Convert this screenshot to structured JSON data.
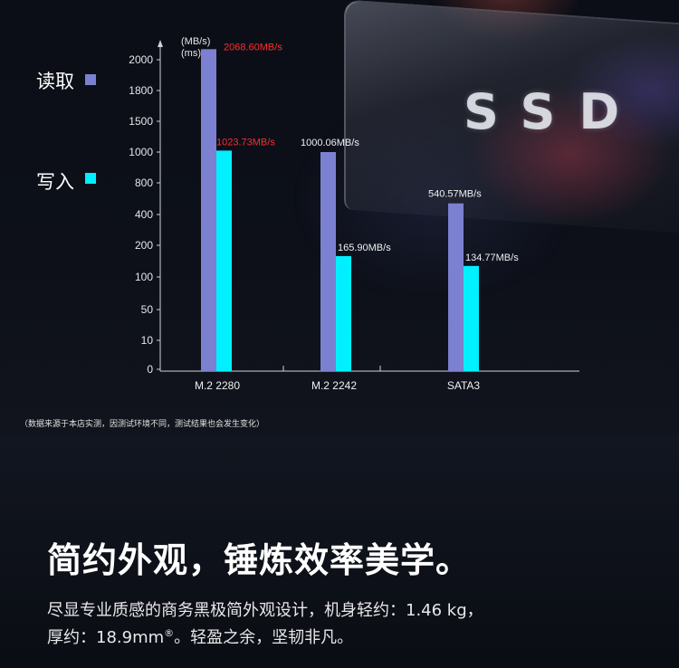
{
  "legend": {
    "read_label": "读取",
    "write_label": "写入",
    "read_color": "#7b80d0",
    "write_color": "#00f0ff"
  },
  "brand": {
    "logo_text": "SSD"
  },
  "chart_data": {
    "type": "bar",
    "y_unit_label_1": "(MB/s)",
    "y_unit_label_2": "(ms)",
    "ytick_labels": [
      "0",
      "10",
      "50",
      "100",
      "200",
      "400",
      "800",
      "1000",
      "1500",
      "1800",
      "2000"
    ],
    "ytick_values": [
      0,
      10,
      50,
      100,
      200,
      400,
      800,
      1000,
      1500,
      1800,
      2000
    ],
    "categories": [
      "M.2 2280",
      "M.2 2242",
      "SATA3"
    ],
    "series": [
      {
        "name": "读取",
        "values": [
          2068.6,
          1000.06,
          540.57
        ],
        "color": "#7b80d0"
      },
      {
        "name": "写入",
        "values": [
          1023.73,
          165.9,
          134.77
        ],
        "color": "#00f0ff"
      }
    ],
    "read_labels": [
      "2068.60MB/s",
      "1000.06MB/s",
      "540.57MB/s"
    ],
    "write_labels": [
      "1023.73MB/s",
      "165.90MB/s",
      "134.77MB/s"
    ],
    "highlight_color": "#ff2b2b",
    "grid": false
  },
  "source_note": "（数据来源于本店实测，因测试环境不同，测试结果也会发生变化）",
  "headline": "简约外观，锤炼效率美学。",
  "description": {
    "line1": "尽显专业质感的商务黑极简外观设计，机身轻约：1.46 kg，",
    "line2_prefix": "厚约：18.9mm",
    "line2_sup": "®",
    "line2_suffix": "。轻盈之余，坚韧非凡。"
  }
}
